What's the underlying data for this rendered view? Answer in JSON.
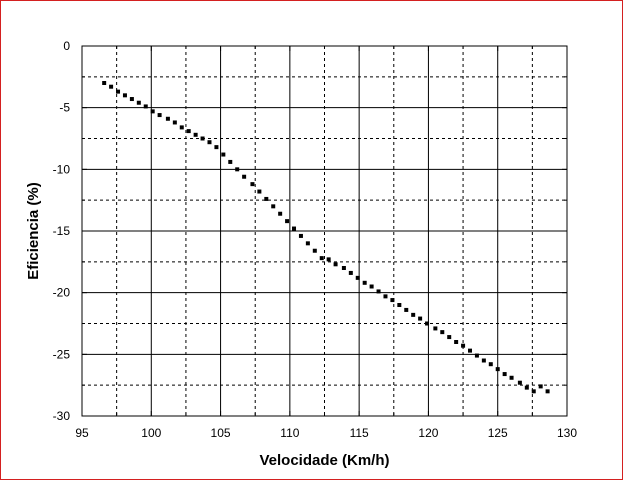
{
  "chart_data": {
    "type": "scatter",
    "title": "",
    "xlabel": "Velocidade (Km/h)",
    "ylabel": "Eficiencia (%)",
    "xlim": [
      95,
      130
    ],
    "ylim": [
      -30,
      0
    ],
    "x_ticks": [
      "95",
      "100",
      "105",
      "110",
      "115",
      "120",
      "125",
      "130"
    ],
    "y_ticks": [
      "0",
      "-5",
      "-10",
      "-15",
      "-20",
      "-25",
      "-30"
    ],
    "grid": "dashed-minor-solid-major",
    "marker": "square",
    "series": [
      {
        "points": [
          [
            96.6,
            -3.0
          ],
          [
            97.1,
            -3.3
          ],
          [
            97.6,
            -3.7
          ],
          [
            98.1,
            -4.0
          ],
          [
            98.6,
            -4.3
          ],
          [
            99.1,
            -4.6
          ],
          [
            99.6,
            -4.9
          ],
          [
            100.1,
            -5.3
          ],
          [
            100.6,
            -5.6
          ],
          [
            101.2,
            -5.9
          ],
          [
            101.7,
            -6.2
          ],
          [
            102.2,
            -6.6
          ],
          [
            102.7,
            -6.9
          ],
          [
            103.2,
            -7.2
          ],
          [
            103.7,
            -7.5
          ],
          [
            104.2,
            -7.8
          ],
          [
            104.7,
            -8.2
          ],
          [
            105.2,
            -8.8
          ],
          [
            105.7,
            -9.4
          ],
          [
            106.2,
            -10.0
          ],
          [
            106.7,
            -10.6
          ],
          [
            107.3,
            -11.2
          ],
          [
            107.8,
            -11.8
          ],
          [
            108.3,
            -12.4
          ],
          [
            108.8,
            -13.0
          ],
          [
            109.3,
            -13.6
          ],
          [
            109.8,
            -14.2
          ],
          [
            110.3,
            -14.8
          ],
          [
            110.8,
            -15.4
          ],
          [
            111.3,
            -16.0
          ],
          [
            111.8,
            -16.6
          ],
          [
            112.3,
            -17.2
          ],
          [
            112.8,
            -17.3
          ],
          [
            113.3,
            -17.7
          ],
          [
            113.9,
            -18.0
          ],
          [
            114.4,
            -18.4
          ],
          [
            114.9,
            -18.8
          ],
          [
            115.4,
            -19.2
          ],
          [
            115.9,
            -19.5
          ],
          [
            116.4,
            -19.9
          ],
          [
            116.9,
            -20.3
          ],
          [
            117.4,
            -20.6
          ],
          [
            117.9,
            -21.0
          ],
          [
            118.4,
            -21.4
          ],
          [
            118.9,
            -21.8
          ],
          [
            119.4,
            -22.1
          ],
          [
            119.9,
            -22.5
          ],
          [
            120.5,
            -22.9
          ],
          [
            121.0,
            -23.2
          ],
          [
            121.5,
            -23.6
          ],
          [
            122.0,
            -24.0
          ],
          [
            122.5,
            -24.3
          ],
          [
            123.0,
            -24.7
          ],
          [
            123.5,
            -25.1
          ],
          [
            124.0,
            -25.5
          ],
          [
            124.5,
            -25.8
          ],
          [
            125.0,
            -26.2
          ],
          [
            125.5,
            -26.6
          ],
          [
            126.0,
            -26.9
          ],
          [
            126.6,
            -27.3
          ],
          [
            127.1,
            -27.7
          ],
          [
            127.6,
            -28.0
          ],
          [
            128.1,
            -27.6
          ],
          [
            128.6,
            -28.0
          ]
        ]
      }
    ]
  }
}
